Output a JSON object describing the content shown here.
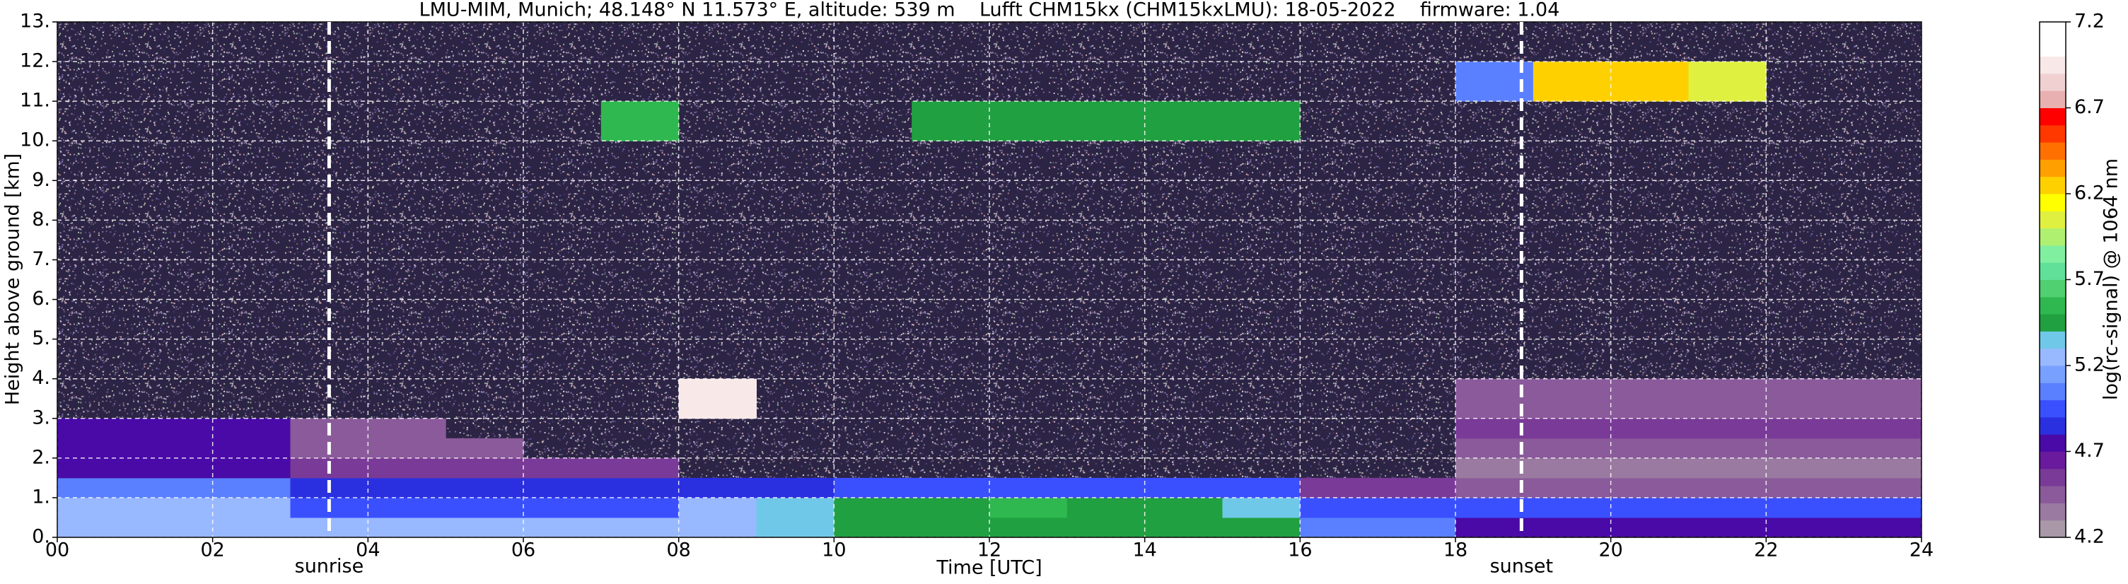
{
  "chart_data": {
    "type": "heatmap",
    "title": "LMU-MIM, Munich; 48.148° N 11.573° E, altitude: 539 m    Lufft CHM15kx (CHM15kxLMU): 18-05-2022    firmware: 1.04",
    "xlabel": "Time [UTC]",
    "ylabel": "Height above ground [km]",
    "xlim": [
      0,
      24
    ],
    "ylim": [
      0,
      13
    ],
    "xticks": [
      {
        "value": 0,
        "label": "00"
      },
      {
        "value": 2,
        "label": "02"
      },
      {
        "value": 4,
        "label": "04"
      },
      {
        "value": 6,
        "label": "06"
      },
      {
        "value": 8,
        "label": "08"
      },
      {
        "value": 10,
        "label": "10"
      },
      {
        "value": 12,
        "label": "12"
      },
      {
        "value": 14,
        "label": "14"
      },
      {
        "value": 16,
        "label": "16"
      },
      {
        "value": 18,
        "label": "18"
      },
      {
        "value": 20,
        "label": "20"
      },
      {
        "value": 22,
        "label": "22"
      },
      {
        "value": 24,
        "label": "24"
      }
    ],
    "yticks": [
      {
        "value": 0,
        "label": "0."
      },
      {
        "value": 1,
        "label": "1."
      },
      {
        "value": 2,
        "label": "2."
      },
      {
        "value": 3,
        "label": "3."
      },
      {
        "value": 4,
        "label": "4."
      },
      {
        "value": 5,
        "label": "5."
      },
      {
        "value": 6,
        "label": "6."
      },
      {
        "value": 7,
        "label": "7."
      },
      {
        "value": 8,
        "label": "8."
      },
      {
        "value": 9,
        "label": "9."
      },
      {
        "value": 10,
        "label": "10."
      },
      {
        "value": 11,
        "label": "11."
      },
      {
        "value": 12,
        "label": "12."
      },
      {
        "value": 13,
        "label": "13."
      }
    ],
    "grid": true,
    "x_edges": [
      0,
      1,
      2,
      3,
      4,
      5,
      6,
      7,
      8,
      9,
      10,
      11,
      12,
      13,
      14,
      15,
      16,
      17,
      18,
      19,
      20,
      21,
      22,
      23,
      24
    ],
    "y_edges": [
      0,
      0.5,
      1,
      1.5,
      2,
      2.5,
      3,
      4,
      5,
      6,
      7,
      8,
      9,
      10,
      11,
      12,
      13
    ],
    "z": [
      [
        5.3,
        5.3,
        5.3,
        5.3,
        5.3,
        5.3,
        5.3,
        5.3,
        5.3,
        5.35,
        5.45,
        5.5,
        5.5,
        5.45,
        5.4,
        5.4,
        5.1,
        5.05,
        4.8,
        4.8,
        4.8,
        4.8,
        4.8,
        4.8
      ],
      [
        5.25,
        5.25,
        5.25,
        5.0,
        5.0,
        5.0,
        5.0,
        5.0,
        5.3,
        5.35,
        5.4,
        5.5,
        5.55,
        5.45,
        5.4,
        5.35,
        5.0,
        4.95,
        4.9,
        4.9,
        4.9,
        4.9,
        4.9,
        4.9
      ],
      [
        5.05,
        5.05,
        5.05,
        4.85,
        4.85,
        4.85,
        4.85,
        4.85,
        4.85,
        4.85,
        4.9,
        4.9,
        4.9,
        4.9,
        4.9,
        4.9,
        4.6,
        4.6,
        4.4,
        4.4,
        4.4,
        4.4,
        4.4,
        4.4
      ],
      [
        4.8,
        4.8,
        4.8,
        4.55,
        4.55,
        4.55,
        4.55,
        4.55,
        null,
        null,
        null,
        null,
        null,
        null,
        null,
        null,
        null,
        null,
        4.35,
        4.35,
        4.35,
        4.35,
        4.35,
        4.35
      ],
      [
        4.8,
        4.8,
        4.8,
        4.5,
        4.5,
        4.5,
        null,
        null,
        null,
        null,
        null,
        null,
        null,
        null,
        null,
        null,
        null,
        null,
        4.5,
        4.5,
        4.5,
        4.5,
        4.5,
        4.5
      ],
      [
        4.75,
        4.75,
        4.75,
        4.45,
        4.45,
        null,
        null,
        null,
        null,
        null,
        null,
        null,
        null,
        null,
        null,
        null,
        null,
        null,
        4.55,
        4.55,
        4.55,
        4.55,
        4.55,
        4.55
      ],
      [
        null,
        null,
        null,
        null,
        null,
        null,
        null,
        null,
        6.9,
        null,
        null,
        null,
        null,
        null,
        null,
        null,
        null,
        null,
        4.4,
        4.4,
        4.4,
        4.4,
        4.4,
        4.4
      ],
      [
        null,
        null,
        null,
        null,
        null,
        null,
        null,
        null,
        null,
        null,
        null,
        null,
        null,
        null,
        null,
        null,
        null,
        null,
        null,
        null,
        null,
        null,
        null,
        null
      ],
      [
        null,
        null,
        null,
        null,
        null,
        null,
        null,
        null,
        null,
        null,
        null,
        null,
        null,
        null,
        null,
        null,
        null,
        null,
        null,
        null,
        null,
        null,
        null,
        null
      ],
      [
        null,
        null,
        null,
        null,
        null,
        null,
        null,
        null,
        null,
        null,
        null,
        null,
        null,
        null,
        null,
        null,
        null,
        null,
        null,
        null,
        null,
        null,
        null,
        null
      ],
      [
        null,
        null,
        null,
        null,
        null,
        null,
        null,
        null,
        null,
        null,
        null,
        null,
        null,
        null,
        null,
        null,
        null,
        null,
        null,
        null,
        null,
        null,
        null,
        null
      ],
      [
        null,
        null,
        null,
        null,
        null,
        null,
        null,
        null,
        null,
        null,
        null,
        null,
        null,
        null,
        null,
        null,
        null,
        null,
        null,
        null,
        null,
        null,
        null,
        null
      ],
      [
        null,
        null,
        null,
        null,
        null,
        null,
        null,
        null,
        null,
        null,
        null,
        null,
        null,
        null,
        null,
        null,
        null,
        null,
        null,
        null,
        null,
        null,
        null,
        null
      ],
      [
        null,
        null,
        null,
        null,
        null,
        null,
        null,
        5.6,
        null,
        null,
        null,
        5.4,
        5.4,
        5.4,
        5.4,
        5.4,
        null,
        null,
        null,
        null,
        null,
        null,
        null,
        null
      ],
      [
        null,
        null,
        null,
        null,
        null,
        null,
        null,
        null,
        null,
        null,
        null,
        null,
        null,
        null,
        null,
        null,
        null,
        null,
        5.1,
        6.2,
        6.3,
        6.1,
        null,
        null
      ],
      [
        null,
        null,
        null,
        null,
        null,
        null,
        null,
        null,
        null,
        null,
        null,
        null,
        null,
        null,
        null,
        null,
        null,
        null,
        null,
        null,
        null,
        null,
        null,
        null
      ]
    ],
    "annotations": [
      {
        "label": "sunrise",
        "x": 3.5
      },
      {
        "label": "sunset",
        "x": 18.85
      }
    ],
    "colorbar": {
      "label": "log(rc-signal) @ 1064 nm",
      "lim": [
        4.2,
        7.2
      ],
      "ticks": [
        4.2,
        4.7,
        5.2,
        5.7,
        6.2,
        6.7,
        7.2
      ],
      "colors": [
        "#a898a8",
        "#9a7aa0",
        "#8a5a9a",
        "#7a3a98",
        "#6a1a9c",
        "#4a0aa8",
        "#2a30e0",
        "#3a50ff",
        "#5a80ff",
        "#78a0ff",
        "#98b8ff",
        "#70c8e8",
        "#20a040",
        "#30b850",
        "#50d070",
        "#60e098",
        "#80f0a0",
        "#b0f070",
        "#e0f040",
        "#ffff00",
        "#ffd000",
        "#ffa000",
        "#ff7000",
        "#ff3800",
        "#ff0000",
        "#e8b0b0",
        "#f0d0d0",
        "#f8e8e8",
        "#ffffff",
        "#ffffff"
      ]
    }
  }
}
